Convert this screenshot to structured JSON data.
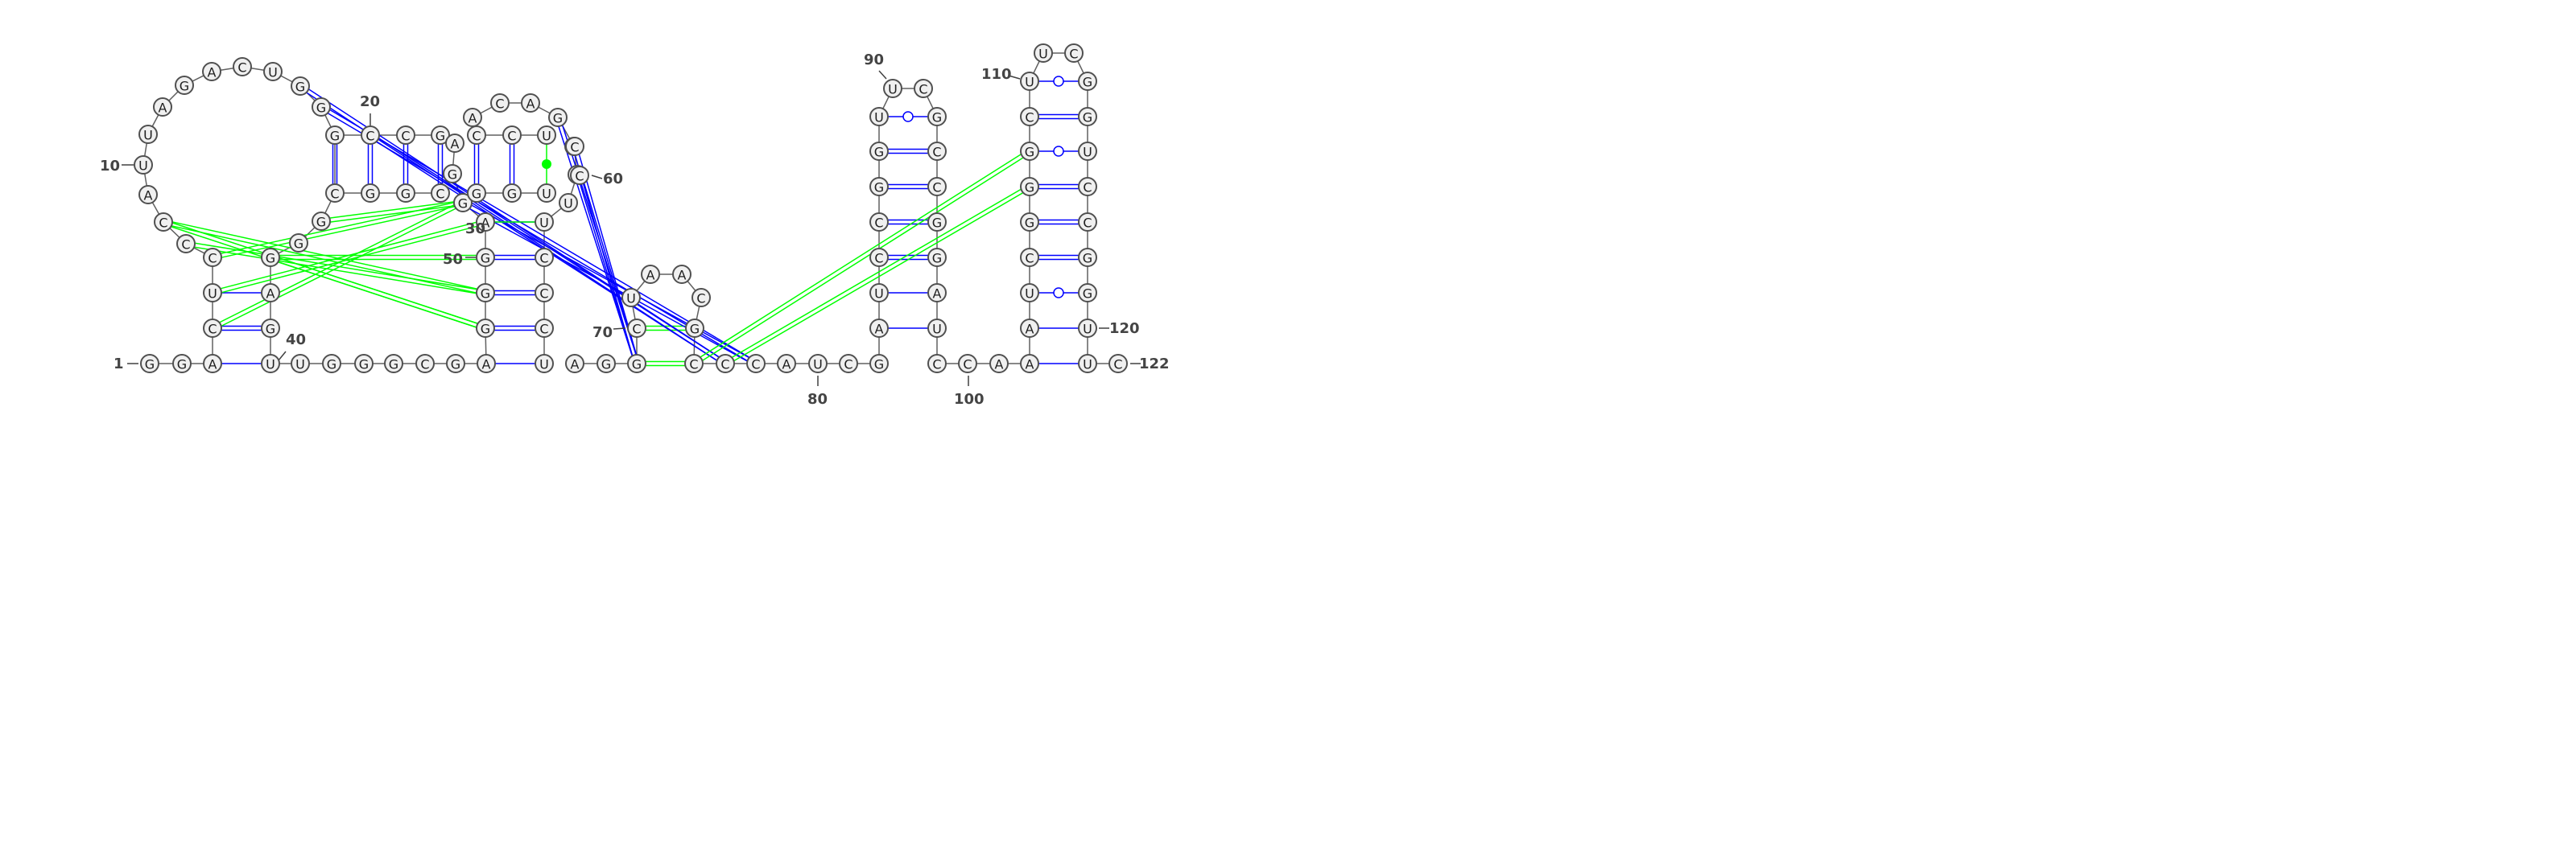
{
  "sequence": "GGAUUGGGCGAUAGCCAUCGCGGGUCAGACUGGCCAACCUGGCCGAUGCCUGGAGCUCAUCCCCGGUAAGUGAUCCGGUCCUCGAGCGGGCGGGUCGGCGGCGCCUGGAUUCUGCAGGCGAUC",
  "colors": {
    "canonical": "#0000ff",
    "noncanonical": "#00ff00",
    "wobble_marker": "#0000ff",
    "backbone": "#606060"
  },
  "labels": {
    "n1": "1",
    "n10": "10",
    "n20": "20",
    "n30": "30",
    "n40": "40",
    "n50": "50",
    "n60": "60",
    "n70": "70",
    "n80": "80",
    "n90": "90",
    "n100": "100",
    "n110": "110",
    "n120": "120",
    "n122": "122"
  }
}
